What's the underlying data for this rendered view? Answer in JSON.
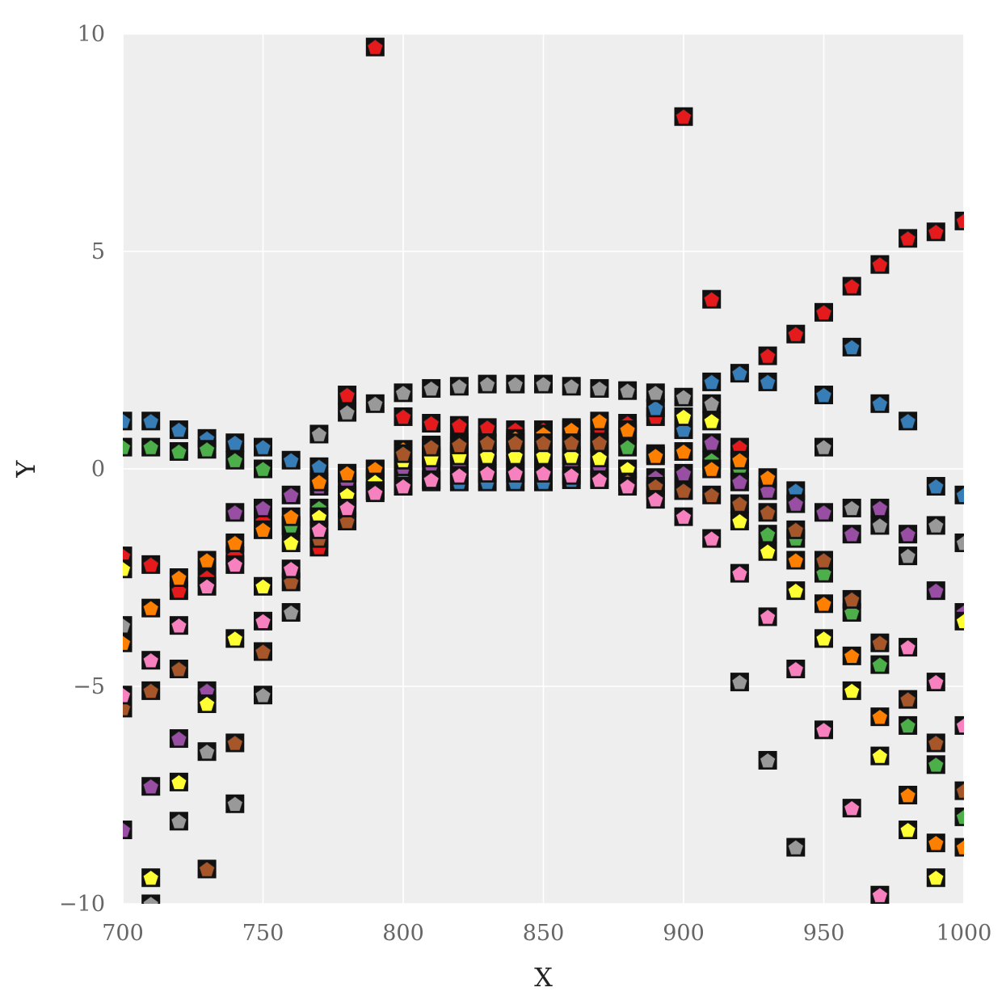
{
  "chart_data": {
    "type": "scatter",
    "title": "",
    "xlabel": "X",
    "ylabel": "Y",
    "xlim": [
      700,
      1000
    ],
    "ylim": [
      -10,
      10
    ],
    "xticks": [
      700,
      750,
      800,
      850,
      900,
      950,
      1000
    ],
    "xtick_labels": [
      "700",
      "750",
      "800",
      "850",
      "900",
      "950",
      "1000"
    ],
    "yticks": [
      -10,
      -5,
      0,
      5,
      10
    ],
    "ytick_labels": [
      "−10",
      "−5",
      "0",
      "5",
      "10"
    ],
    "grid": true,
    "background": "#eeeeef",
    "marker": "pentagon in black square",
    "palette": [
      "#e41a1c",
      "#377eb8",
      "#4daf4a",
      "#984ea3",
      "#ff7f00",
      "#ffff33",
      "#a65628",
      "#f781bf",
      "#999999"
    ],
    "series": [
      {
        "name": "red",
        "color": "#e41a1c",
        "x": [
          700,
          710,
          720,
          730,
          740,
          750,
          760,
          770,
          780,
          790,
          800,
          810,
          820,
          830,
          840,
          850,
          860,
          870,
          880,
          890,
          900,
          910,
          920,
          930,
          940,
          950,
          960,
          970,
          980,
          990,
          1000
        ],
        "y": [
          -2,
          -2.2,
          -2.8,
          -2.5,
          -2,
          -1.2,
          -1.3,
          -1.8,
          1.7,
          9.7,
          1.2,
          1.05,
          1.0,
          0.95,
          0.9,
          0.9,
          0.95,
          1.0,
          1.05,
          1.2,
          8.1,
          3.9,
          0.5,
          2.6,
          3.1,
          3.6,
          4.2,
          4.7,
          5.3,
          5.45,
          5.7
        ]
      },
      {
        "name": "blue",
        "color": "#377eb8",
        "x": [
          700,
          710,
          720,
          730,
          740,
          750,
          760,
          770,
          780,
          790,
          800,
          810,
          820,
          830,
          840,
          850,
          860,
          870,
          880,
          890,
          900,
          910,
          920,
          930,
          940,
          950,
          960,
          970,
          980,
          990,
          1000
        ],
        "y": [
          1.1,
          1.1,
          0.9,
          0.7,
          0.6,
          0.5,
          0.2,
          0.05,
          -0.1,
          -0.2,
          -0.25,
          -0.3,
          -0.3,
          -0.3,
          -0.3,
          -0.3,
          -0.25,
          -0.2,
          0.8,
          1.4,
          0.9,
          2.0,
          2.2,
          2.0,
          -0.5,
          1.7,
          2.8,
          1.5,
          1.1,
          -0.4,
          -0.6
        ]
      },
      {
        "name": "green",
        "color": "#4daf4a",
        "x": [
          700,
          710,
          720,
          730,
          740,
          750,
          760,
          770,
          780,
          790,
          800,
          810,
          820,
          830,
          840,
          850,
          860,
          870,
          880,
          890,
          900,
          910,
          920,
          930,
          940,
          950,
          960,
          970,
          980,
          990,
          1000
        ],
        "y": [
          0.5,
          0.5,
          0.4,
          0.45,
          0.2,
          0.0,
          -1.3,
          -0.9,
          -0.7,
          -0.5,
          0.2,
          0.3,
          0.4,
          0.45,
          0.5,
          0.5,
          0.5,
          0.55,
          0.5,
          0.35,
          -0.25,
          0.2,
          0.0,
          -1.5,
          -1.6,
          -2.4,
          -3.3,
          -4.5,
          -5.9,
          -6.8,
          -8.0
        ]
      },
      {
        "name": "purple",
        "color": "#984ea3",
        "x": [
          700,
          710,
          720,
          730,
          740,
          750,
          760,
          770,
          780,
          790,
          800,
          810,
          820,
          830,
          840,
          850,
          860,
          870,
          880,
          890,
          900,
          910,
          920,
          930,
          940,
          950,
          960,
          970,
          980,
          990,
          1000
        ],
        "y": [
          -8.3,
          -7.3,
          -6.2,
          -5.1,
          -1.0,
          -0.9,
          -0.6,
          -0.4,
          -0.3,
          0.0,
          0.05,
          0.1,
          0.1,
          0.1,
          0.1,
          0.1,
          0.1,
          0.05,
          0.0,
          -0.2,
          -0.1,
          0.6,
          -0.3,
          -0.5,
          -0.8,
          -1.0,
          -1.5,
          -0.9,
          -1.5,
          -2.8,
          -3.3
        ]
      },
      {
        "name": "orange",
        "color": "#ff7f00",
        "x": [
          700,
          710,
          720,
          730,
          740,
          750,
          760,
          770,
          780,
          790,
          800,
          810,
          820,
          830,
          840,
          850,
          860,
          870,
          880,
          890,
          900,
          910,
          920,
          930,
          940,
          950,
          960,
          970,
          980,
          990,
          1000
        ],
        "y": [
          -4.0,
          -3.2,
          -2.5,
          -2.1,
          -1.7,
          -1.4,
          -1.1,
          -0.3,
          -0.1,
          0.0,
          0.45,
          0.55,
          0.6,
          0.6,
          0.7,
          0.8,
          0.9,
          1.1,
          0.9,
          0.3,
          0.4,
          0.0,
          0.2,
          -0.2,
          -2.1,
          -3.1,
          -4.3,
          -5.7,
          -7.5,
          -8.6,
          -8.7
        ]
      },
      {
        "name": "yellow",
        "color": "#ffff33",
        "x": [
          700,
          710,
          720,
          730,
          740,
          750,
          760,
          770,
          780,
          790,
          800,
          810,
          820,
          830,
          840,
          850,
          860,
          870,
          880,
          890,
          900,
          910,
          920,
          930,
          940,
          950,
          960,
          970,
          980,
          990,
          1000
        ],
        "y": [
          -2.3,
          -9.4,
          -7.2,
          -5.4,
          -3.9,
          -2.7,
          -1.7,
          -1.1,
          -0.6,
          -0.3,
          0.2,
          0.25,
          0.3,
          0.3,
          0.3,
          0.3,
          0.3,
          0.25,
          0.0,
          -0.5,
          1.2,
          1.1,
          -1.2,
          -1.9,
          -2.8,
          -3.9,
          -5.1,
          -6.6,
          -8.3,
          -9.4,
          -3.5
        ]
      },
      {
        "name": "brown",
        "color": "#a65628",
        "x": [
          700,
          710,
          720,
          730,
          740,
          750,
          760,
          770,
          780,
          790,
          800,
          810,
          820,
          830,
          840,
          850,
          860,
          870,
          880,
          890,
          900,
          910,
          920,
          930,
          940,
          950,
          960,
          970,
          980,
          990,
          1000
        ],
        "y": [
          -5.5,
          -5.1,
          -4.6,
          -9.2,
          -6.3,
          -4.2,
          -2.6,
          -1.6,
          -1.2,
          -0.5,
          0.35,
          0.5,
          0.55,
          0.6,
          0.6,
          0.6,
          0.6,
          0.6,
          -0.3,
          -0.4,
          -0.5,
          -0.6,
          -0.8,
          -1.0,
          -1.4,
          -2.1,
          -3.0,
          -4.0,
          -5.3,
          -6.3,
          -7.4
        ]
      },
      {
        "name": "pink",
        "color": "#f781bf",
        "x": [
          700,
          710,
          720,
          730,
          740,
          750,
          760,
          770,
          780,
          790,
          800,
          810,
          820,
          830,
          840,
          850,
          860,
          870,
          880,
          890,
          900,
          910,
          920,
          930,
          940,
          950,
          960,
          970,
          980,
          990,
          1000
        ],
        "y": [
          -5.2,
          -4.4,
          -3.6,
          -2.7,
          -2.2,
          -3.5,
          -2.3,
          -1.4,
          -0.9,
          -0.55,
          -0.4,
          -0.25,
          -0.15,
          -0.1,
          -0.1,
          -0.1,
          -0.15,
          -0.25,
          -0.4,
          -0.7,
          -1.1,
          -1.6,
          -2.4,
          -3.4,
          -4.6,
          -6.0,
          -7.8,
          -9.8,
          -4.1,
          -4.9,
          -5.9
        ]
      },
      {
        "name": "gray",
        "color": "#999999",
        "x": [
          700,
          710,
          720,
          730,
          740,
          750,
          760,
          770,
          780,
          790,
          800,
          810,
          820,
          830,
          840,
          850,
          860,
          870,
          880,
          890,
          900,
          910,
          920,
          930,
          940,
          950,
          960,
          970,
          980,
          990,
          1000
        ],
        "y": [
          -3.6,
          -10.0,
          -8.1,
          -6.5,
          -7.7,
          -5.2,
          -3.3,
          0.8,
          1.3,
          1.5,
          1.75,
          1.85,
          1.9,
          1.95,
          1.95,
          1.95,
          1.9,
          1.85,
          1.8,
          1.75,
          1.65,
          1.5,
          -4.9,
          -6.7,
          -8.7,
          0.5,
          -0.9,
          -1.3,
          -2.0,
          -1.3,
          -1.7
        ]
      }
    ]
  }
}
